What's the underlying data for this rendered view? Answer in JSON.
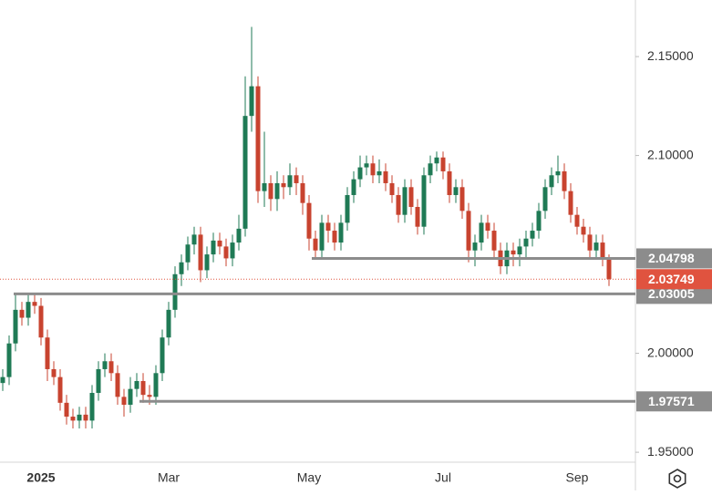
{
  "chart_data": {
    "type": "candlestick",
    "categories": [
      null,
      null,
      null,
      null,
      null,
      null,
      "2025",
      null,
      null,
      null,
      null,
      null,
      null,
      null,
      null,
      null,
      null,
      null,
      null,
      null,
      null,
      null,
      null,
      null,
      null,
      null,
      "Mar",
      null,
      null,
      null,
      null,
      null,
      null,
      null,
      null,
      null,
      null,
      null,
      null,
      null,
      null,
      null,
      null,
      null,
      null,
      null,
      null,
      null,
      "May",
      null,
      null,
      null,
      null,
      null,
      null,
      null,
      null,
      null,
      null,
      null,
      null,
      null,
      null,
      null,
      null,
      null,
      null,
      null,
      null,
      "Jul",
      null,
      null,
      null,
      null,
      null,
      null,
      null,
      null,
      null,
      null,
      null,
      null,
      null,
      null,
      null,
      null,
      null,
      null,
      null,
      null,
      "Sep",
      null,
      null,
      null,
      null,
      null
    ],
    "open": [
      1.985,
      1.988,
      2.005,
      2.022,
      2.018,
      2.026,
      2.024,
      2.008,
      1.992,
      1.988,
      1.975,
      1.968,
      1.966,
      1.969,
      1.966,
      1.98,
      1.992,
      1.996,
      1.99,
      1.978,
      1.974,
      1.982,
      1.986,
      1.979,
      1.978,
      1.99,
      2.008,
      2.022,
      2.04,
      2.046,
      2.055,
      2.06,
      2.042,
      2.05,
      2.057,
      2.054,
      2.048,
      2.056,
      2.063,
      2.12,
      2.135,
      2.082,
      2.086,
      2.078,
      2.086,
      2.084,
      2.09,
      2.086,
      2.076,
      2.058,
      2.052,
      2.066,
      2.062,
      2.056,
      2.066,
      2.08,
      2.088,
      2.094,
      2.096,
      2.09,
      2.092,
      2.086,
      2.08,
      2.07,
      2.084,
      2.074,
      2.064,
      2.09,
      2.096,
      2.099,
      2.092,
      2.08,
      2.084,
      2.072,
      2.052,
      2.056,
      2.066,
      2.062,
      2.052,
      2.044,
      2.052,
      2.05,
      2.054,
      2.058,
      2.062,
      2.072,
      2.084,
      2.09,
      2.092,
      2.082,
      2.07,
      2.064,
      2.06,
      2.052,
      2.056,
      2.048
    ],
    "high": [
      1.992,
      2.009,
      2.03,
      2.026,
      2.03,
      2.03,
      2.028,
      2.012,
      1.996,
      1.992,
      1.979,
      1.972,
      1.973,
      1.973,
      1.984,
      1.996,
      2.0,
      2.0,
      1.994,
      1.982,
      1.988,
      1.99,
      1.99,
      1.984,
      1.994,
      2.012,
      2.026,
      2.044,
      2.05,
      2.059,
      2.064,
      2.064,
      2.054,
      2.061,
      2.061,
      2.058,
      2.06,
      2.07,
      2.14,
      2.165,
      2.14,
      2.112,
      2.09,
      2.092,
      2.09,
      2.096,
      2.094,
      2.09,
      2.08,
      2.062,
      2.07,
      2.07,
      2.066,
      2.07,
      2.084,
      2.092,
      2.1,
      2.1,
      2.1,
      2.098,
      2.096,
      2.09,
      2.084,
      2.088,
      2.088,
      2.078,
      2.094,
      2.1,
      2.102,
      2.102,
      2.096,
      2.088,
      2.088,
      2.076,
      2.06,
      2.07,
      2.07,
      2.066,
      2.056,
      2.056,
      2.056,
      2.058,
      2.062,
      2.066,
      2.076,
      2.088,
      2.094,
      2.1,
      2.096,
      2.086,
      2.074,
      2.068,
      2.064,
      2.06,
      2.06,
      2.05
    ],
    "low": [
      1.981,
      1.984,
      2.001,
      2.014,
      2.014,
      2.02,
      2.004,
      1.986,
      1.984,
      1.971,
      1.964,
      1.962,
      1.962,
      1.962,
      1.962,
      1.976,
      1.988,
      1.986,
      1.974,
      1.968,
      1.97,
      1.978,
      1.975,
      1.974,
      1.974,
      1.986,
      2.004,
      2.018,
      2.034,
      2.042,
      2.05,
      2.036,
      2.038,
      2.046,
      2.05,
      2.044,
      2.044,
      2.052,
      2.059,
      2.112,
      2.076,
      2.074,
      2.072,
      2.072,
      2.078,
      2.08,
      2.08,
      2.07,
      2.052,
      2.048,
      2.048,
      2.056,
      2.052,
      2.052,
      2.062,
      2.076,
      2.084,
      2.09,
      2.086,
      2.086,
      2.082,
      2.076,
      2.066,
      2.066,
      2.07,
      2.06,
      2.06,
      2.086,
      2.092,
      2.088,
      2.076,
      2.076,
      2.068,
      2.046,
      2.044,
      2.052,
      2.058,
      2.048,
      2.04,
      2.04,
      2.044,
      2.044,
      2.048,
      2.054,
      2.058,
      2.068,
      2.08,
      2.086,
      2.078,
      2.066,
      2.06,
      2.056,
      2.048,
      2.048,
      2.044,
      2.034
    ],
    "close": [
      1.988,
      2.005,
      2.022,
      2.018,
      2.026,
      2.024,
      2.008,
      1.992,
      1.988,
      1.975,
      1.968,
      1.966,
      1.969,
      1.966,
      1.98,
      1.992,
      1.996,
      1.99,
      1.978,
      1.974,
      1.982,
      1.986,
      1.979,
      1.978,
      1.99,
      2.008,
      2.022,
      2.04,
      2.046,
      2.055,
      2.06,
      2.042,
      2.05,
      2.057,
      2.054,
      2.048,
      2.056,
      2.063,
      2.12,
      2.135,
      2.082,
      2.086,
      2.078,
      2.086,
      2.084,
      2.09,
      2.086,
      2.076,
      2.058,
      2.052,
      2.066,
      2.062,
      2.056,
      2.066,
      2.08,
      2.088,
      2.094,
      2.096,
      2.09,
      2.092,
      2.086,
      2.08,
      2.07,
      2.084,
      2.074,
      2.064,
      2.09,
      2.096,
      2.099,
      2.092,
      2.08,
      2.084,
      2.072,
      2.052,
      2.056,
      2.066,
      2.062,
      2.052,
      2.044,
      2.052,
      2.05,
      2.054,
      2.058,
      2.062,
      2.072,
      2.084,
      2.09,
      2.092,
      2.082,
      2.07,
      2.064,
      2.06,
      2.052,
      2.056,
      2.048,
      2.0375
    ],
    "up_color": "#1f7a55",
    "down_color": "#c8432f",
    "ylim": [
      1.9459,
      2.1786
    ],
    "yticks": [
      {
        "value": 1.95,
        "label": "1.95000"
      },
      {
        "value": 2.0,
        "label": "2.00000"
      },
      {
        "value": 2.1,
        "label": "2.10000"
      },
      {
        "value": 2.15,
        "label": "2.15000"
      }
    ],
    "grid": false,
    "levels": [
      2.04798,
      2.03005,
      1.97571
    ],
    "level_color": "#8c8c8c",
    "last_price": 2.03749,
    "last_color": "#e0533f"
  }
}
